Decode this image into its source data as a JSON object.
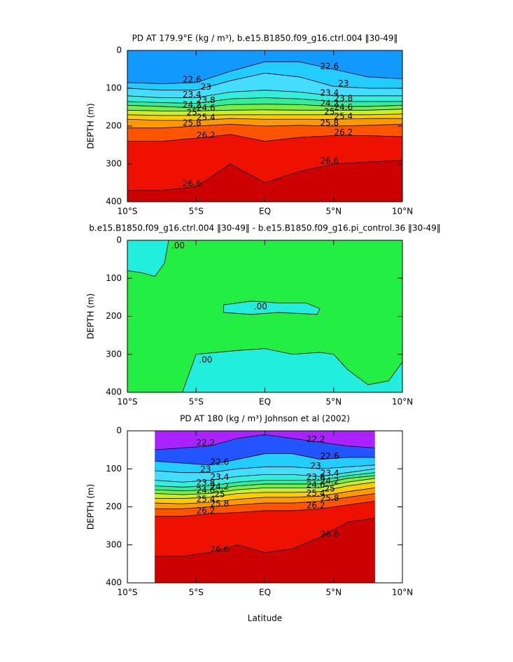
{
  "chart_data": [
    {
      "type": "contour",
      "title": "PD AT 179.9°E (kg / m³), b.e15.B1850.f09_g16.ctrl.004 ‖30-49‖",
      "ylabel": "DEPTH (m)",
      "xlim": [
        -10,
        10
      ],
      "ylim": [
        400,
        0
      ],
      "xticks": [
        {
          "value": -10,
          "label": "10°S"
        },
        {
          "value": -5,
          "label": "5°S"
        },
        {
          "value": 0,
          "label": "EQ"
        },
        {
          "value": 5,
          "label": "5°N"
        },
        {
          "value": 10,
          "label": "10°N"
        }
      ],
      "yticks": [
        0,
        100,
        200,
        300,
        400
      ],
      "color": "#1199ff",
      "x": [
        -10,
        -7.5,
        -5,
        -2.5,
        0,
        2.5,
        5,
        7.5,
        10
      ],
      "series": [
        {
          "name": "22.6",
          "color": "#22ccff",
          "values": [
            85,
            88,
            85,
            55,
            30,
            30,
            50,
            70,
            75
          ]
        },
        {
          "name": "23",
          "color": "#44ddff",
          "values": [
            100,
            105,
            105,
            80,
            60,
            70,
            95,
            100,
            100
          ]
        },
        {
          "name": "23.4",
          "color": "#33eedd",
          "values": [
            120,
            125,
            125,
            110,
            105,
            110,
            120,
            120,
            120
          ]
        },
        {
          "name": "23.8",
          "color": "#33ee99",
          "values": [
            135,
            138,
            140,
            128,
            125,
            128,
            135,
            135,
            135
          ]
        },
        {
          "name": "24.2",
          "color": "#77ee44",
          "values": [
            145,
            148,
            152,
            143,
            142,
            143,
            148,
            148,
            145
          ]
        },
        {
          "name": "24.6",
          "color": "#ccee22",
          "values": [
            158,
            160,
            160,
            158,
            157,
            158,
            158,
            158,
            155
          ]
        },
        {
          "name": "25",
          "color": "#ffcc00",
          "values": [
            170,
            172,
            172,
            170,
            170,
            170,
            170,
            170,
            168
          ]
        },
        {
          "name": "25.4",
          "color": "#ff9900",
          "values": [
            182,
            185,
            185,
            180,
            182,
            182,
            182,
            180,
            180
          ]
        },
        {
          "name": "25.8",
          "color": "#ff5500",
          "values": [
            205,
            205,
            200,
            195,
            200,
            198,
            200,
            198,
            195
          ]
        },
        {
          "name": "26.2",
          "color": "#ee1100",
          "values": [
            240,
            240,
            232,
            222,
            240,
            230,
            225,
            225,
            228
          ]
        },
        {
          "name": "26.6",
          "color": "#cc0000",
          "values": [
            370,
            370,
            360,
            300,
            350,
            320,
            300,
            295,
            290
          ]
        }
      ]
    },
    {
      "type": "region",
      "title": "b.e15.B1850.f09_g16.ctrl.004 ‖30-49‖ - b.e15.B1850.f09_g16.pi_control.36 ‖30-49‖",
      "ylabel": "DEPTH (m)",
      "xlim": [
        -10,
        10
      ],
      "ylim": [
        400,
        0
      ],
      "xticks": [
        {
          "value": -10,
          "label": "10°S"
        },
        {
          "value": -5,
          "label": "5°S"
        },
        {
          "value": 0,
          "label": "EQ"
        },
        {
          "value": 5,
          "label": "5°N"
        },
        {
          "value": 10,
          "label": "10°N"
        }
      ],
      "yticks": [
        0,
        100,
        200,
        300,
        400
      ],
      "color": "#22ee44",
      "x": [
        -10,
        10
      ],
      "series": [
        {
          "name": ".00",
          "color": "#22eedd",
          "x": [
            -10,
            -7,
            -7.3,
            -8,
            -9,
            -10
          ],
          "values": [
            0,
            0,
            60,
            95,
            85,
            80
          ]
        },
        {
          "name": ".00",
          "color": "#22eedd",
          "x": [
            -3,
            -1,
            1,
            3,
            4,
            3.8,
            1,
            -1,
            -3
          ],
          "values": [
            170,
            160,
            165,
            165,
            180,
            195,
            190,
            195,
            190
          ]
        },
        {
          "name": ".00",
          "color": "#22eedd",
          "x": [
            -6,
            -5,
            -2,
            0,
            2,
            4,
            5,
            6,
            7.5,
            9,
            10,
            10
          ],
          "values": [
            400,
            300,
            290,
            285,
            300,
            295,
            300,
            340,
            380,
            370,
            320,
            400
          ]
        }
      ]
    },
    {
      "type": "contour",
      "title": "PD AT 180 (kg / m³) Johnson et al (2002)",
      "ylabel": "DEPTH (m)",
      "xlabel": "Latitude",
      "xlim": [
        -10,
        10
      ],
      "ylim": [
        400,
        0
      ],
      "xticks": [
        {
          "value": -10,
          "label": "10°S"
        },
        {
          "value": -5,
          "label": "5°S"
        },
        {
          "value": 0,
          "label": "EQ"
        },
        {
          "value": 5,
          "label": "5°N"
        },
        {
          "value": 10,
          "label": "10°N"
        }
      ],
      "yticks": [
        0,
        100,
        200,
        300,
        400
      ],
      "color": "#aa22ff",
      "x": [
        -8,
        -6,
        -4,
        -2,
        0,
        2,
        4,
        6,
        8
      ],
      "series": [
        {
          "name": "22.2",
          "color": "#2255ff",
          "values": [
            50,
            45,
            40,
            20,
            10,
            20,
            30,
            40,
            45
          ]
        },
        {
          "name": "22.6",
          "color": "#22ccff",
          "values": [
            80,
            85,
            90,
            75,
            60,
            60,
            75,
            70,
            70
          ]
        },
        {
          "name": "23",
          "color": "#44ddff",
          "values": [
            105,
            110,
            110,
            100,
            95,
            95,
            100,
            95,
            90
          ]
        },
        {
          "name": "23.4",
          "color": "#33eedd",
          "values": [
            130,
            135,
            130,
            120,
            115,
            115,
            120,
            110,
            100
          ]
        },
        {
          "name": "23.8",
          "color": "#33ee99",
          "values": [
            145,
            148,
            145,
            135,
            130,
            130,
            130,
            118,
            110
          ]
        },
        {
          "name": "24.2",
          "color": "#77ee44",
          "values": [
            155,
            158,
            155,
            145,
            140,
            140,
            140,
            125,
            118
          ]
        },
        {
          "name": "24.6",
          "color": "#ccee22",
          "values": [
            165,
            168,
            165,
            155,
            150,
            150,
            150,
            135,
            125
          ]
        },
        {
          "name": "25",
          "color": "#ffcc00",
          "values": [
            178,
            178,
            175,
            165,
            162,
            162,
            160,
            145,
            135
          ]
        },
        {
          "name": "25.4",
          "color": "#ff9900",
          "values": [
            190,
            192,
            188,
            180,
            175,
            175,
            172,
            160,
            150
          ]
        },
        {
          "name": "25.8",
          "color": "#ff5500",
          "values": [
            205,
            205,
            200,
            195,
            190,
            190,
            185,
            175,
            165
          ]
        },
        {
          "name": "26.2",
          "color": "#ee1100",
          "values": [
            225,
            225,
            218,
            215,
            210,
            210,
            205,
            195,
            185
          ]
        },
        {
          "name": "26.6",
          "color": "#cc0000",
          "values": [
            330,
            330,
            320,
            300,
            320,
            310,
            280,
            240,
            230
          ]
        }
      ]
    }
  ]
}
